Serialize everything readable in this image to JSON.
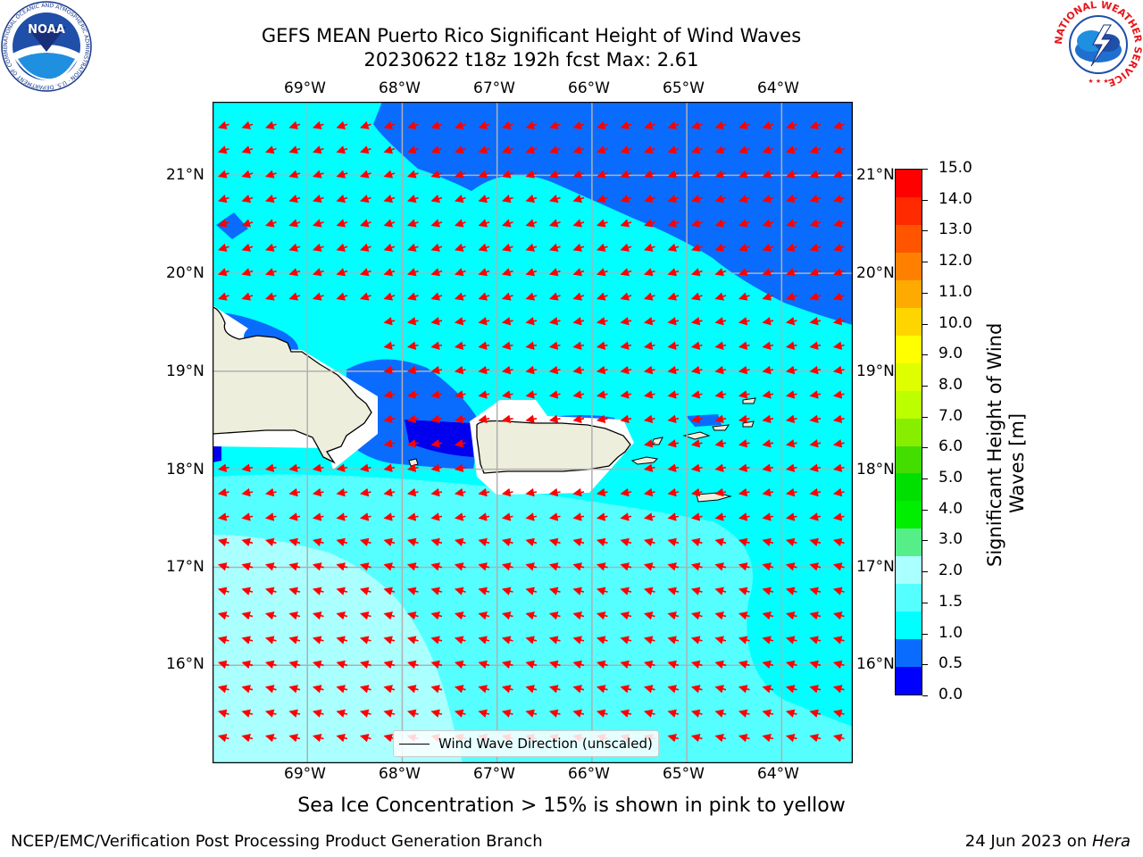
{
  "title": {
    "line1": "GEFS MEAN Puerto Rico Significant Height of Wind Waves",
    "line2": "20230622 t18z 192h fcst   Max: 2.61"
  },
  "map": {
    "lon_labels": [
      "69°W",
      "68°W",
      "67°W",
      "66°W",
      "65°W",
      "64°W"
    ],
    "lat_labels": [
      "21°N",
      "20°N",
      "19°N",
      "18°N",
      "17°N",
      "16°N"
    ],
    "extent": {
      "lon_min": -70.0,
      "lon_max": -63.25,
      "lat_min": 15.0,
      "lat_max": 21.75
    },
    "legend_label": "Wind Wave Direction (unscaled)",
    "arrow_color": "#ff0000",
    "land_color": "#eeeedd",
    "sea_colors": {
      "0.5-1.0": "#0a6cff",
      "1.0-1.5": "#00ffff",
      "1.5-2.0": "#55ffff",
      "2.0-3.0": "#aaffff",
      "0.0-0.5": "#0000ee"
    }
  },
  "colorbar": {
    "label": "Significant Height of Wind Waves [m]",
    "label_line1": "Significant Height of Wind",
    "label_line2": "Waves [m]",
    "ticks": [
      "15.0",
      "14.0",
      "13.0",
      "12.0",
      "11.0",
      "10.0",
      "9.0",
      "8.0",
      "7.0",
      "6.0",
      "5.0",
      "4.0",
      "3.0",
      "2.0",
      "1.5",
      "1.0",
      "0.5",
      "0.0"
    ],
    "colors": [
      "#ff0000",
      "#ff2a00",
      "#ff5500",
      "#ff8000",
      "#ffaa00",
      "#ffd500",
      "#ffff00",
      "#ddff00",
      "#bbff00",
      "#88ee00",
      "#44dd00",
      "#00e000",
      "#00ee00",
      "#55ee88",
      "#aaffff",
      "#55ffff",
      "#00ffff",
      "#0a6cff",
      "#0000ff"
    ]
  },
  "subnote": "Sea Ice Concentration > 15% is shown in pink to yellow",
  "footer": {
    "left": "NCEP/EMC/Verification Post Processing Product Generation Branch",
    "right_date": "24 Jun 2023 on ",
    "right_host": "Hera"
  },
  "logos": {
    "noaa_text": "NOAA",
    "noaa_ring": "NATIONAL OCEANIC AND ATMOSPHERIC ADMINISTRATION · U.S. DEPARTMENT OF COMMERCE",
    "nws_ring": "NATIONAL WEATHER SERVICE"
  }
}
